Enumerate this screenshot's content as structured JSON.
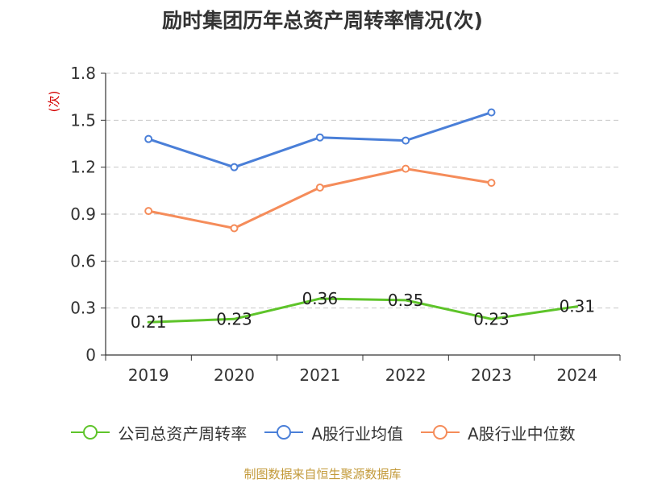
{
  "chart_data": {
    "type": "line",
    "title": "励时集团历年总资产周转率情况(次)",
    "ylabel": "(次)",
    "xlabel": "",
    "categories": [
      "2019",
      "2020",
      "2021",
      "2022",
      "2023",
      "2024"
    ],
    "ylim": [
      0,
      1.8
    ],
    "yticks": [
      "0",
      "0.3",
      "0.6",
      "0.9",
      "1.2",
      "1.5",
      "1.8"
    ],
    "grid": true,
    "legend_position": "bottom",
    "series": [
      {
        "name": "公司总资产周转率",
        "color": "#5ec42a",
        "values": [
          0.21,
          0.23,
          0.36,
          0.35,
          0.23,
          0.31
        ],
        "labels": [
          "0.21",
          "0.23",
          "0.36",
          "0.35",
          "0.23",
          "0.31"
        ],
        "show_markers": false
      },
      {
        "name": "A股行业均值",
        "color": "#4a7fd8",
        "values": [
          1.38,
          1.2,
          1.39,
          1.37,
          1.55,
          null
        ],
        "show_markers": true
      },
      {
        "name": "A股行业中位数",
        "color": "#f58c5a",
        "values": [
          0.92,
          0.81,
          1.07,
          1.19,
          1.1,
          null
        ],
        "show_markers": true
      }
    ]
  },
  "source": "制图数据来自恒生聚源数据库"
}
